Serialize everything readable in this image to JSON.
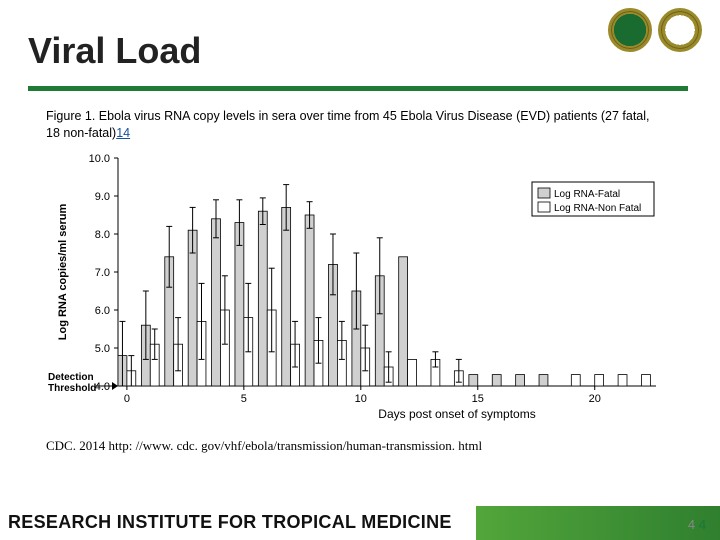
{
  "header": {
    "title": "Viral Load"
  },
  "caption": {
    "prefix": "Figure 1. Ebola virus RNA copy levels in sera over time from 45 Ebola Virus Disease (EVD) patients (27 fatal, 18 non-fatal)",
    "sup": "14"
  },
  "citation": "CDC. 2014 http: //www. cdc. gov/vhf/ebola/transmission/human-transmission. html",
  "footer": {
    "institute": "RESEARCH INSTITUTE FOR TROPICAL MEDICINE",
    "page": "4"
  },
  "chart": {
    "type": "bar",
    "ylabel": "Log RNA copies/ml serum",
    "xlabel": "Days post onset of symptoms",
    "detection_label": "Detection\nThreshold",
    "detection_y": 4.0,
    "ylim": [
      4.0,
      10.0
    ],
    "ytick_step": 1.0,
    "xticks": [
      0,
      5,
      10,
      15,
      20
    ],
    "xrange": [
      0,
      22
    ],
    "legend": [
      {
        "label": "Log RNA-Fatal",
        "fill": "#d0d0d0"
      },
      {
        "label": "Log RNA-Non Fatal",
        "fill": "#ffffff"
      }
    ],
    "colors": {
      "fatal": "#d0d0d0",
      "nonfatal": "#ffffff",
      "axis": "#000000",
      "bg": "#ffffff"
    },
    "bar_width": 0.38,
    "label_fontsize": 11,
    "fatal": {
      "x": [
        0,
        1,
        2,
        3,
        4,
        5,
        6,
        7,
        8,
        9,
        10,
        11,
        12,
        15,
        16,
        17,
        18
      ],
      "y": [
        4.8,
        5.6,
        7.4,
        8.1,
        8.4,
        8.3,
        8.6,
        8.7,
        8.5,
        7.2,
        6.5,
        6.9,
        7.4,
        4.3,
        4.3,
        4.3,
        4.3
      ],
      "err": [
        0.9,
        0.9,
        0.8,
        0.6,
        0.5,
        0.6,
        0.35,
        0.6,
        0.35,
        0.8,
        1.0,
        1.0,
        0.0,
        0,
        0,
        0,
        0
      ]
    },
    "nonfatal": {
      "x": [
        0,
        1,
        2,
        3,
        4,
        5,
        6,
        7,
        8,
        9,
        10,
        11,
        12,
        13,
        14,
        19,
        20,
        21,
        22
      ],
      "y": [
        4.4,
        5.1,
        5.1,
        5.7,
        6.0,
        5.8,
        6.0,
        5.1,
        5.2,
        5.2,
        5.0,
        4.5,
        4.7,
        4.7,
        4.4,
        4.3,
        4.3,
        4.3,
        4.3
      ],
      "err": [
        0.4,
        0.4,
        0.7,
        1.0,
        0.9,
        0.9,
        1.1,
        0.6,
        0.6,
        0.5,
        0.6,
        0.4,
        0.0,
        0.2,
        0.3,
        0,
        0,
        0,
        0
      ]
    }
  }
}
